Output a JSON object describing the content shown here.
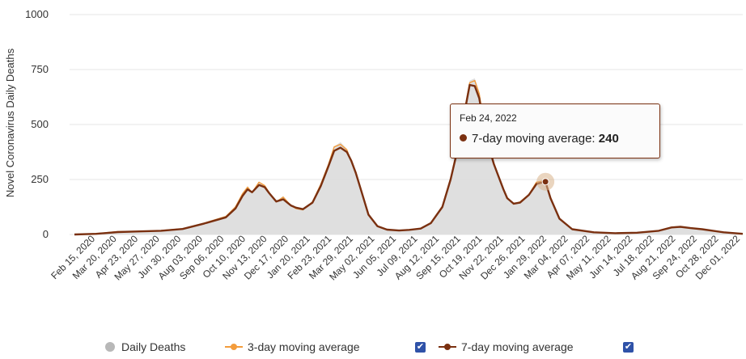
{
  "chart_data": {
    "type": "line",
    "ylabel": "Novel Coronavirus Daily Deaths",
    "ylim": [
      0,
      1000
    ],
    "y_ticks": [
      "0",
      "250",
      "500",
      "750",
      "1000"
    ],
    "x_ticks": [
      "Feb 15, 2020",
      "Mar 20, 2020",
      "Apr 23, 2020",
      "May 27, 2020",
      "Jun 30, 2020",
      "Aug 03, 2020",
      "Sep 06, 2020",
      "Oct 10, 2020",
      "Nov 13, 2020",
      "Dec 17, 2020",
      "Jan 20, 2021",
      "Feb 23, 2021",
      "Mar 29, 2021",
      "May 02, 2021",
      "Jun 05, 2021",
      "Jul 09, 2021",
      "Aug 12, 2021",
      "Sep 15, 2021",
      "Oct 19, 2021",
      "Nov 22, 2021",
      "Dec 26, 2021",
      "Jan 29, 2022",
      "Mar 04, 2022",
      "Apr 07, 2022",
      "May 11, 2022",
      "Jun 14, 2022",
      "Jul 18, 2022",
      "Aug 21, 2022",
      "Sep 24, 2022",
      "Oct 28, 2022",
      "Dec 01, 2022"
    ],
    "grid": true,
    "legend_position": "bottom-center",
    "x_range": [
      "2020-02-15",
      "2022-12-31"
    ],
    "series": [
      {
        "name": "Daily Deaths",
        "type": "area",
        "color": "#d9d9d9",
        "points": [
          [
            "2020-02-15",
            0
          ],
          [
            "2020-03-20",
            3
          ],
          [
            "2020-04-23",
            12
          ],
          [
            "2020-05-27",
            15
          ],
          [
            "2020-06-30",
            18
          ],
          [
            "2020-08-03",
            28
          ],
          [
            "2020-09-06",
            55
          ],
          [
            "2020-10-10",
            85
          ],
          [
            "2020-10-25",
            130
          ],
          [
            "2020-11-05",
            190
          ],
          [
            "2020-11-13",
            220
          ],
          [
            "2020-11-20",
            195
          ],
          [
            "2020-12-01",
            240
          ],
          [
            "2020-12-10",
            225
          ],
          [
            "2020-12-17",
            190
          ],
          [
            "2020-12-28",
            150
          ],
          [
            "2021-01-08",
            175
          ],
          [
            "2021-01-20",
            135
          ],
          [
            "2021-01-28",
            120
          ],
          [
            "2021-02-08",
            115
          ],
          [
            "2021-02-23",
            150
          ],
          [
            "2021-03-08",
            230
          ],
          [
            "2021-03-20",
            320
          ],
          [
            "2021-03-29",
            400
          ],
          [
            "2021-04-08",
            420
          ],
          [
            "2021-04-18",
            390
          ],
          [
            "2021-04-25",
            330
          ],
          [
            "2021-05-02",
            290
          ],
          [
            "2021-05-12",
            190
          ],
          [
            "2021-05-22",
            95
          ],
          [
            "2021-06-05",
            40
          ],
          [
            "2021-06-20",
            22
          ],
          [
            "2021-07-09",
            18
          ],
          [
            "2021-07-25",
            22
          ],
          [
            "2021-08-12",
            28
          ],
          [
            "2021-08-28",
            55
          ],
          [
            "2021-09-15",
            130
          ],
          [
            "2021-09-28",
            260
          ],
          [
            "2021-10-10",
            420
          ],
          [
            "2021-10-19",
            560
          ],
          [
            "2021-10-28",
            700
          ],
          [
            "2021-11-05",
            710
          ],
          [
            "2021-11-12",
            650
          ],
          [
            "2021-11-22",
            460
          ],
          [
            "2021-12-05",
            330
          ],
          [
            "2021-12-20",
            210
          ],
          [
            "2021-12-26",
            170
          ],
          [
            "2022-01-05",
            140
          ],
          [
            "2022-01-15",
            150
          ],
          [
            "2022-01-29",
            185
          ],
          [
            "2022-02-10",
            240
          ],
          [
            "2022-02-24",
            250
          ],
          [
            "2022-03-04",
            170
          ],
          [
            "2022-03-18",
            75
          ],
          [
            "2022-04-07",
            25
          ],
          [
            "2022-05-11",
            10
          ],
          [
            "2022-06-14",
            6
          ],
          [
            "2022-07-18",
            8
          ],
          [
            "2022-08-21",
            18
          ],
          [
            "2022-09-10",
            35
          ],
          [
            "2022-09-24",
            38
          ],
          [
            "2022-10-10",
            30
          ],
          [
            "2022-10-28",
            25
          ],
          [
            "2022-12-01",
            10
          ],
          [
            "2022-12-31",
            3
          ]
        ]
      },
      {
        "name": "3-day moving average",
        "type": "line",
        "color": "#f39c3c",
        "points": [
          [
            "2020-02-15",
            0
          ],
          [
            "2020-03-20",
            4
          ],
          [
            "2020-04-23",
            13
          ],
          [
            "2020-05-27",
            14
          ],
          [
            "2020-06-30",
            18
          ],
          [
            "2020-08-03",
            26
          ],
          [
            "2020-09-06",
            52
          ],
          [
            "2020-10-10",
            82
          ],
          [
            "2020-10-25",
            125
          ],
          [
            "2020-11-05",
            185
          ],
          [
            "2020-11-13",
            215
          ],
          [
            "2020-11-20",
            190
          ],
          [
            "2020-12-01",
            238
          ],
          [
            "2020-12-10",
            222
          ],
          [
            "2020-12-17",
            190
          ],
          [
            "2020-12-28",
            148
          ],
          [
            "2021-01-08",
            170
          ],
          [
            "2021-01-20",
            132
          ],
          [
            "2021-01-28",
            118
          ],
          [
            "2021-02-08",
            112
          ],
          [
            "2021-02-23",
            148
          ],
          [
            "2021-03-08",
            228
          ],
          [
            "2021-03-20",
            318
          ],
          [
            "2021-03-29",
            398
          ],
          [
            "2021-04-08",
            410
          ],
          [
            "2021-04-18",
            385
          ],
          [
            "2021-04-25",
            330
          ],
          [
            "2021-05-02",
            285
          ],
          [
            "2021-05-12",
            188
          ],
          [
            "2021-05-22",
            92
          ],
          [
            "2021-06-05",
            38
          ],
          [
            "2021-06-20",
            21
          ],
          [
            "2021-07-09",
            18
          ],
          [
            "2021-07-25",
            21
          ],
          [
            "2021-08-12",
            27
          ],
          [
            "2021-08-28",
            53
          ],
          [
            "2021-09-15",
            128
          ],
          [
            "2021-09-28",
            255
          ],
          [
            "2021-10-10",
            410
          ],
          [
            "2021-10-19",
            550
          ],
          [
            "2021-10-28",
            690
          ],
          [
            "2021-11-05",
            700
          ],
          [
            "2021-11-12",
            640
          ],
          [
            "2021-11-22",
            455
          ],
          [
            "2021-12-05",
            325
          ],
          [
            "2021-12-20",
            205
          ],
          [
            "2021-12-26",
            168
          ],
          [
            "2022-01-05",
            138
          ],
          [
            "2022-01-15",
            148
          ],
          [
            "2022-01-29",
            182
          ],
          [
            "2022-02-10",
            238
          ],
          [
            "2022-02-24",
            245
          ],
          [
            "2022-03-04",
            168
          ],
          [
            "2022-03-18",
            72
          ],
          [
            "2022-04-07",
            24
          ],
          [
            "2022-05-11",
            10
          ],
          [
            "2022-06-14",
            6
          ],
          [
            "2022-07-18",
            8
          ],
          [
            "2022-08-21",
            17
          ],
          [
            "2022-09-10",
            33
          ],
          [
            "2022-09-24",
            36
          ],
          [
            "2022-10-10",
            29
          ],
          [
            "2022-10-28",
            24
          ],
          [
            "2022-12-01",
            10
          ],
          [
            "2022-12-31",
            3
          ]
        ]
      },
      {
        "name": "7-day moving average",
        "type": "line",
        "color": "#7a3010",
        "points": [
          [
            "2020-02-15",
            0
          ],
          [
            "2020-03-20",
            3
          ],
          [
            "2020-04-23",
            11
          ],
          [
            "2020-05-27",
            14
          ],
          [
            "2020-06-30",
            17
          ],
          [
            "2020-08-03",
            25
          ],
          [
            "2020-09-06",
            50
          ],
          [
            "2020-10-10",
            78
          ],
          [
            "2020-10-25",
            118
          ],
          [
            "2020-11-05",
            175
          ],
          [
            "2020-11-13",
            205
          ],
          [
            "2020-11-20",
            192
          ],
          [
            "2020-12-01",
            225
          ],
          [
            "2020-12-10",
            215
          ],
          [
            "2020-12-17",
            188
          ],
          [
            "2020-12-28",
            150
          ],
          [
            "2021-01-08",
            160
          ],
          [
            "2021-01-20",
            132
          ],
          [
            "2021-01-28",
            122
          ],
          [
            "2021-02-08",
            115
          ],
          [
            "2021-02-23",
            145
          ],
          [
            "2021-03-08",
            220
          ],
          [
            "2021-03-20",
            310
          ],
          [
            "2021-03-29",
            380
          ],
          [
            "2021-04-08",
            395
          ],
          [
            "2021-04-18",
            375
          ],
          [
            "2021-04-25",
            335
          ],
          [
            "2021-05-02",
            280
          ],
          [
            "2021-05-12",
            185
          ],
          [
            "2021-05-22",
            90
          ],
          [
            "2021-06-05",
            38
          ],
          [
            "2021-06-20",
            22
          ],
          [
            "2021-07-09",
            18
          ],
          [
            "2021-07-25",
            21
          ],
          [
            "2021-08-12",
            27
          ],
          [
            "2021-08-28",
            52
          ],
          [
            "2021-09-15",
            125
          ],
          [
            "2021-09-28",
            250
          ],
          [
            "2021-10-10",
            400
          ],
          [
            "2021-10-19",
            540
          ],
          [
            "2021-10-28",
            680
          ],
          [
            "2021-11-05",
            675
          ],
          [
            "2021-11-12",
            620
          ],
          [
            "2021-11-22",
            450
          ],
          [
            "2021-12-05",
            320
          ],
          [
            "2021-12-20",
            205
          ],
          [
            "2021-12-26",
            165
          ],
          [
            "2022-01-05",
            140
          ],
          [
            "2022-01-15",
            145
          ],
          [
            "2022-01-29",
            180
          ],
          [
            "2022-02-10",
            230
          ],
          [
            "2022-02-24",
            240
          ],
          [
            "2022-03-04",
            165
          ],
          [
            "2022-03-18",
            72
          ],
          [
            "2022-04-07",
            24
          ],
          [
            "2022-05-11",
            10
          ],
          [
            "2022-06-14",
            6
          ],
          [
            "2022-07-18",
            8
          ],
          [
            "2022-08-21",
            17
          ],
          [
            "2022-09-10",
            32
          ],
          [
            "2022-09-24",
            35
          ],
          [
            "2022-10-10",
            29
          ],
          [
            "2022-10-28",
            24
          ],
          [
            "2022-12-01",
            10
          ],
          [
            "2022-12-31",
            3
          ]
        ]
      }
    ]
  },
  "tooltip": {
    "date": "Feb 24, 2022",
    "series_label": "7-day moving average:",
    "value": "240",
    "x": "2022-02-24",
    "y": 240
  },
  "legend": [
    {
      "label": "Daily Deaths",
      "color": "#b8b8b8",
      "symbol": "circle",
      "checkbox": false
    },
    {
      "label": "3-day moving average",
      "color": "#f39c3c",
      "symbol": "line",
      "checkbox": true
    },
    {
      "label": "7-day moving average",
      "color": "#7a3010",
      "symbol": "line",
      "checkbox": true
    }
  ],
  "colors": {
    "grid": "#e6e6e6",
    "checkbox": "#2f52a8",
    "checkmark": "✔"
  }
}
